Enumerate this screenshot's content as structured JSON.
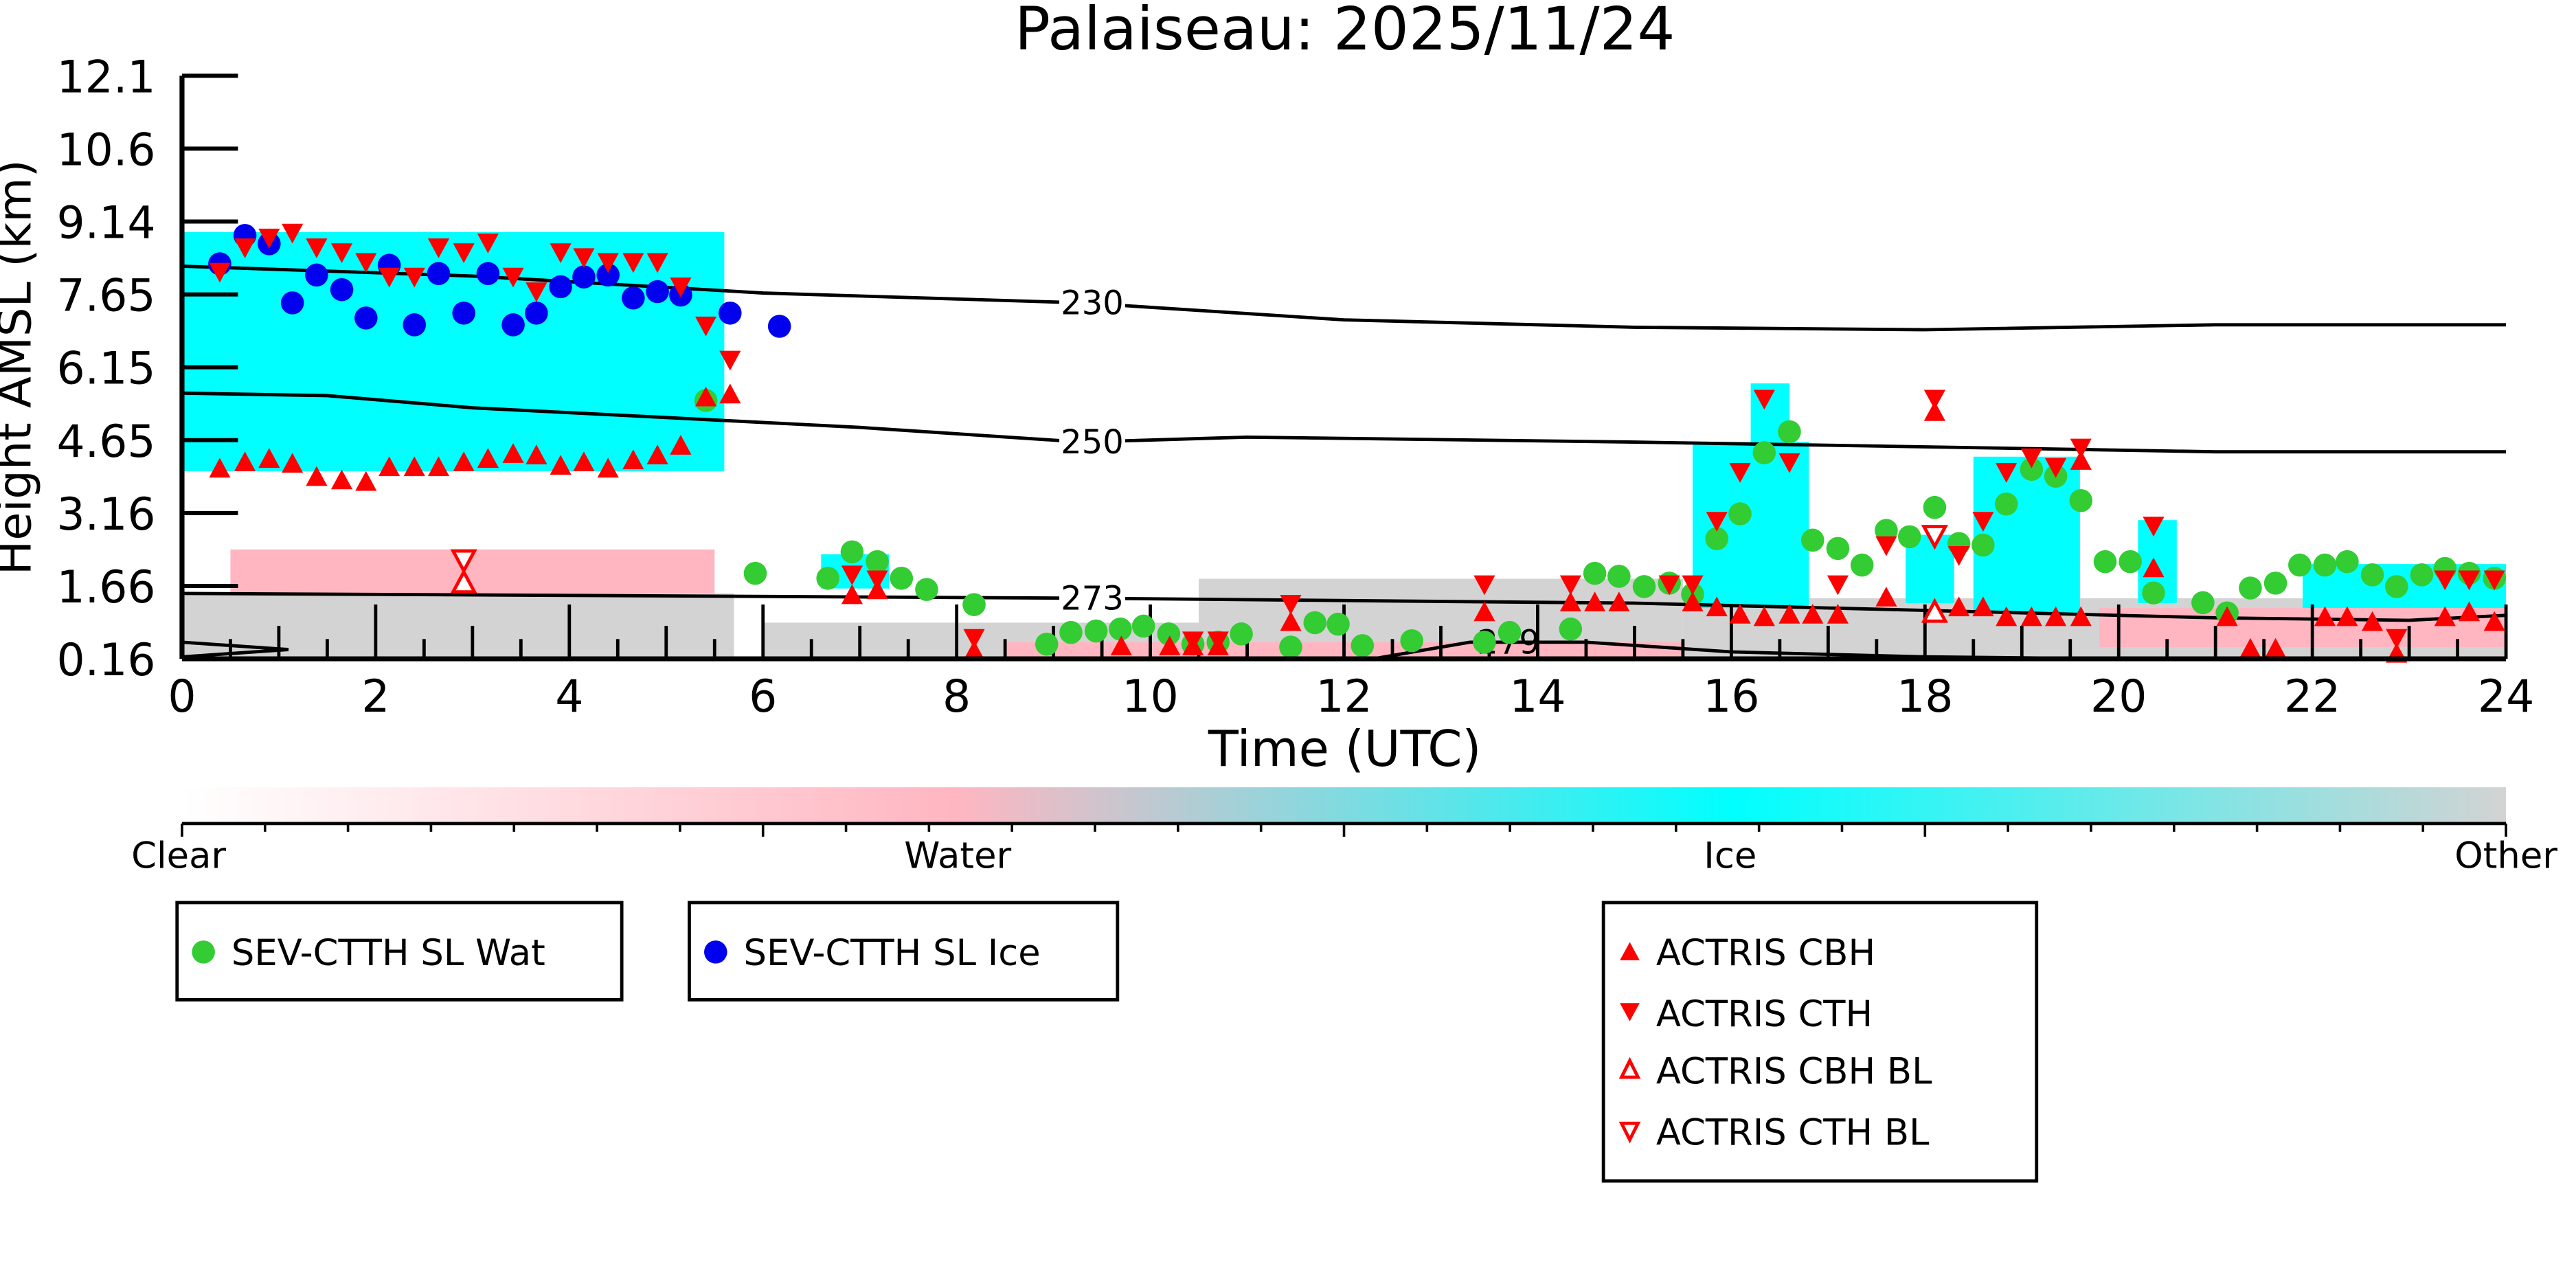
{
  "chart_data": {
    "type": "scatter",
    "title": "Palaiseau: 2025/11/24",
    "xlabel": "Time (UTC)",
    "ylabel": "Height AMSL (km)",
    "xlim": [
      0,
      24
    ],
    "ylim": [
      0.16,
      12.1
    ],
    "x_ticks": [
      "0",
      "2",
      "4",
      "6",
      "8",
      "10",
      "12",
      "14",
      "16",
      "18",
      "20",
      "22",
      "24"
    ],
    "y_ticks": [
      "0.16",
      "1.66",
      "3.16",
      "4.65",
      "6.15",
      "7.65",
      "9.14",
      "10.6",
      "12.1"
    ],
    "colorbar": {
      "labels": [
        "Clear",
        "Water",
        "Ice",
        "Other"
      ],
      "colors": [
        "#ffffff",
        "#ffb6c1",
        "#00ffff",
        "#d3d3d3"
      ]
    },
    "classification_regions": [
      {
        "class": "Other",
        "t": [
          0,
          5.7
        ],
        "h": [
          0.16,
          1.5
        ]
      },
      {
        "class": "Water",
        "t": [
          0.5,
          5.5
        ],
        "h": [
          1.5,
          2.4
        ]
      },
      {
        "class": "Ice",
        "t": [
          0,
          5.6
        ],
        "h": [
          4.0,
          8.9
        ]
      },
      {
        "class": "Ice",
        "t": [
          6.6,
          7.3
        ],
        "h": [
          1.6,
          2.3
        ]
      },
      {
        "class": "Other",
        "t": [
          6.0,
          15.5
        ],
        "h": [
          0.16,
          0.9
        ]
      },
      {
        "class": "Other",
        "t": [
          10.5,
          15.5
        ],
        "h": [
          0.9,
          1.8
        ]
      },
      {
        "class": "Water",
        "t": [
          8.5,
          15.5
        ],
        "h": [
          0.16,
          0.5
        ]
      },
      {
        "class": "Other",
        "t": [
          15.5,
          24
        ],
        "h": [
          0.16,
          1.4
        ]
      },
      {
        "class": "Ice",
        "t": [
          15.6,
          16.8
        ],
        "h": [
          1.2,
          4.6
        ]
      },
      {
        "class": "Ice",
        "t": [
          16.2,
          16.6
        ],
        "h": [
          4.6,
          5.8
        ]
      },
      {
        "class": "Ice",
        "t": [
          17.8,
          18.3
        ],
        "h": [
          1.3,
          2.7
        ]
      },
      {
        "class": "Ice",
        "t": [
          18.5,
          19.6
        ],
        "h": [
          1.1,
          4.3
        ]
      },
      {
        "class": "Ice",
        "t": [
          20.2,
          20.6
        ],
        "h": [
          1.3,
          3.0
        ]
      },
      {
        "class": "Ice",
        "t": [
          21.9,
          24
        ],
        "h": [
          1.2,
          2.1
        ]
      },
      {
        "class": "Water",
        "t": [
          19.8,
          24
        ],
        "h": [
          0.4,
          1.2
        ]
      }
    ],
    "isotherms": [
      {
        "label": "230",
        "points": [
          [
            0,
            8.2
          ],
          [
            3,
            8.0
          ],
          [
            6,
            7.65
          ],
          [
            9.3,
            7.45
          ],
          [
            12,
            7.1
          ],
          [
            15,
            6.95
          ],
          [
            18,
            6.9
          ],
          [
            21,
            7.0
          ],
          [
            24,
            7.0
          ]
        ]
      },
      {
        "label": "250",
        "points": [
          [
            0,
            5.6
          ],
          [
            1.5,
            5.55
          ],
          [
            3,
            5.3
          ],
          [
            5,
            5.1
          ],
          [
            7,
            4.9
          ],
          [
            9.3,
            4.6
          ],
          [
            11,
            4.7
          ],
          [
            15,
            4.6
          ],
          [
            18,
            4.5
          ],
          [
            21,
            4.4
          ],
          [
            24,
            4.4
          ]
        ]
      },
      {
        "label": "273",
        "points": [
          [
            0,
            1.5
          ],
          [
            5,
            1.45
          ],
          [
            9.3,
            1.4
          ],
          [
            15,
            1.3
          ],
          [
            18,
            1.15
          ],
          [
            21,
            1.0
          ],
          [
            23,
            0.95
          ],
          [
            24,
            1.05
          ]
        ]
      },
      {
        "label": "279",
        "points": [
          [
            12.3,
            0.16
          ],
          [
            13.3,
            0.5
          ],
          [
            14.5,
            0.5
          ],
          [
            16,
            0.3
          ],
          [
            18,
            0.2
          ],
          [
            20,
            0.16
          ]
        ]
      }
    ],
    "isotherm_extra": [
      [
        0,
        0.5
      ],
      [
        1.1,
        0.35
      ],
      [
        0,
        0.2
      ],
      [
        1.1,
        0.35
      ]
    ],
    "series": [
      {
        "name": "SEV-CTTH SL Wat",
        "marker": "circle",
        "color": "#33cc33",
        "points": [
          [
            5.41,
            5.45
          ],
          [
            5.92,
            1.91
          ],
          [
            6.67,
            1.81
          ],
          [
            6.92,
            2.35
          ],
          [
            7.18,
            2.15
          ],
          [
            7.43,
            1.81
          ],
          [
            7.69,
            1.58
          ],
          [
            8.18,
            1.27
          ],
          [
            8.93,
            0.46
          ],
          [
            9.18,
            0.7
          ],
          [
            9.44,
            0.73
          ],
          [
            9.69,
            0.77
          ],
          [
            9.93,
            0.83
          ],
          [
            10.19,
            0.67
          ],
          [
            10.44,
            0.46
          ],
          [
            10.7,
            0.5
          ],
          [
            10.94,
            0.67
          ],
          [
            11.45,
            0.4
          ],
          [
            11.7,
            0.9
          ],
          [
            11.94,
            0.87
          ],
          [
            12.19,
            0.43
          ],
          [
            12.7,
            0.53
          ],
          [
            13.45,
            0.5
          ],
          [
            13.71,
            0.7
          ],
          [
            14.34,
            0.77
          ],
          [
            14.59,
            1.91
          ],
          [
            14.84,
            1.85
          ],
          [
            15.1,
            1.64
          ],
          [
            15.36,
            1.71
          ],
          [
            15.6,
            1.48
          ],
          [
            15.85,
            2.62
          ],
          [
            16.09,
            3.13
          ],
          [
            16.34,
            4.38
          ],
          [
            16.6,
            4.81
          ],
          [
            16.84,
            2.59
          ],
          [
            17.1,
            2.42
          ],
          [
            17.35,
            2.08
          ],
          [
            17.6,
            2.79
          ],
          [
            17.84,
            2.66
          ],
          [
            18.1,
            3.26
          ],
          [
            18.35,
            2.52
          ],
          [
            18.6,
            2.49
          ],
          [
            18.84,
            3.33
          ],
          [
            19.1,
            4.04
          ],
          [
            19.35,
            3.9
          ],
          [
            19.61,
            3.4
          ],
          [
            19.86,
            2.15
          ],
          [
            20.12,
            2.15
          ],
          [
            20.36,
            1.51
          ],
          [
            20.87,
            1.31
          ],
          [
            21.12,
            1.1
          ],
          [
            21.36,
            1.61
          ],
          [
            21.62,
            1.71
          ],
          [
            21.87,
            2.08
          ],
          [
            22.13,
            2.08
          ],
          [
            22.36,
            2.15
          ],
          [
            22.62,
            1.88
          ],
          [
            22.87,
            1.64
          ],
          [
            23.13,
            1.88
          ],
          [
            23.37,
            2.01
          ],
          [
            23.62,
            1.91
          ],
          [
            23.88,
            1.81
          ]
        ]
      },
      {
        "name": "SEV-CTTH SL Ice",
        "marker": "circle",
        "color": "#0000ee",
        "points": [
          [
            0.39,
            8.25
          ],
          [
            0.65,
            8.83
          ],
          [
            0.9,
            8.66
          ],
          [
            1.14,
            7.45
          ],
          [
            1.39,
            8.02
          ],
          [
            1.65,
            7.72
          ],
          [
            1.9,
            7.14
          ],
          [
            2.14,
            8.22
          ],
          [
            2.4,
            7.0
          ],
          [
            2.65,
            8.05
          ],
          [
            2.91,
            7.24
          ],
          [
            3.16,
            8.05
          ],
          [
            3.42,
            7.0
          ],
          [
            3.66,
            7.24
          ],
          [
            3.91,
            7.78
          ],
          [
            4.15,
            7.98
          ],
          [
            4.4,
            8.02
          ],
          [
            4.66,
            7.55
          ],
          [
            4.91,
            7.68
          ],
          [
            5.15,
            7.61
          ],
          [
            5.66,
            7.24
          ],
          [
            6.17,
            6.97
          ]
        ]
      },
      {
        "name": "ACTRIS CBH",
        "marker": "triangle-up",
        "color": "#ff0000",
        "points": [
          [
            0.39,
            4.04
          ],
          [
            0.65,
            4.17
          ],
          [
            0.9,
            4.24
          ],
          [
            1.14,
            4.14
          ],
          [
            1.39,
            3.87
          ],
          [
            1.65,
            3.8
          ],
          [
            1.9,
            3.77
          ],
          [
            2.14,
            4.07
          ],
          [
            2.4,
            4.07
          ],
          [
            2.65,
            4.07
          ],
          [
            2.91,
            4.17
          ],
          [
            3.16,
            4.24
          ],
          [
            3.42,
            4.34
          ],
          [
            3.66,
            4.31
          ],
          [
            3.91,
            4.1
          ],
          [
            4.15,
            4.17
          ],
          [
            4.4,
            4.04
          ],
          [
            4.66,
            4.21
          ],
          [
            4.91,
            4.31
          ],
          [
            5.15,
            4.51
          ],
          [
            5.41,
            5.5
          ],
          [
            5.66,
            5.56
          ],
          [
            6.92,
            1.45
          ],
          [
            7.18,
            1.55
          ],
          [
            8.18,
            0.3
          ],
          [
            9.7,
            0.4
          ],
          [
            10.2,
            0.4
          ],
          [
            10.44,
            0.4
          ],
          [
            10.7,
            0.4
          ],
          [
            11.45,
            0.9
          ],
          [
            13.45,
            1.1
          ],
          [
            14.34,
            1.3
          ],
          [
            14.59,
            1.3
          ],
          [
            14.84,
            1.3
          ],
          [
            15.6,
            1.3
          ],
          [
            15.85,
            1.2
          ],
          [
            16.09,
            1.05
          ],
          [
            16.34,
            1.0
          ],
          [
            16.6,
            1.05
          ],
          [
            16.84,
            1.05
          ],
          [
            17.1,
            1.05
          ],
          [
            17.6,
            1.4
          ],
          [
            18.1,
            5.2
          ],
          [
            18.35,
            1.2
          ],
          [
            18.6,
            1.2
          ],
          [
            18.84,
            1.0
          ],
          [
            19.1,
            1.0
          ],
          [
            19.35,
            1.0
          ],
          [
            19.61,
            4.2
          ],
          [
            19.61,
            1.0
          ],
          [
            20.36,
            2.0
          ],
          [
            21.12,
            1.0
          ],
          [
            21.36,
            0.35
          ],
          [
            21.62,
            0.35
          ],
          [
            22.13,
            1.0
          ],
          [
            22.36,
            1.0
          ],
          [
            22.62,
            0.9
          ],
          [
            22.87,
            0.25
          ],
          [
            23.37,
            1.0
          ],
          [
            23.62,
            1.1
          ],
          [
            23.88,
            0.9
          ]
        ]
      },
      {
        "name": "ACTRIS CTH",
        "marker": "triangle-down",
        "color": "#ff0000",
        "points": [
          [
            0.39,
            8.1
          ],
          [
            0.65,
            8.6
          ],
          [
            0.9,
            8.8
          ],
          [
            1.14,
            8.9
          ],
          [
            1.39,
            8.6
          ],
          [
            1.65,
            8.5
          ],
          [
            1.9,
            8.3
          ],
          [
            2.14,
            8.0
          ],
          [
            2.4,
            8.0
          ],
          [
            2.65,
            8.6
          ],
          [
            2.91,
            8.5
          ],
          [
            3.16,
            8.7
          ],
          [
            3.42,
            8.0
          ],
          [
            3.66,
            7.7
          ],
          [
            3.91,
            8.5
          ],
          [
            4.15,
            8.4
          ],
          [
            4.4,
            8.3
          ],
          [
            4.66,
            8.3
          ],
          [
            4.91,
            8.3
          ],
          [
            5.15,
            7.8
          ],
          [
            5.41,
            7.0
          ],
          [
            5.66,
            6.3
          ],
          [
            6.92,
            1.9
          ],
          [
            7.18,
            1.8
          ],
          [
            8.18,
            0.6
          ],
          [
            10.44,
            0.55
          ],
          [
            10.7,
            0.55
          ],
          [
            11.45,
            1.3
          ],
          [
            13.45,
            1.7
          ],
          [
            14.34,
            1.7
          ],
          [
            15.36,
            1.7
          ],
          [
            15.6,
            1.7
          ],
          [
            15.85,
            3.0
          ],
          [
            16.09,
            4.0
          ],
          [
            16.34,
            5.5
          ],
          [
            16.6,
            4.2
          ],
          [
            17.1,
            1.7
          ],
          [
            17.6,
            2.5
          ],
          [
            18.1,
            5.5
          ],
          [
            18.35,
            2.3
          ],
          [
            18.6,
            3.0
          ],
          [
            18.84,
            4.0
          ],
          [
            19.1,
            4.3
          ],
          [
            19.35,
            4.1
          ],
          [
            19.61,
            4.5
          ],
          [
            20.36,
            2.9
          ],
          [
            22.87,
            0.6
          ],
          [
            23.37,
            1.8
          ],
          [
            23.62,
            1.8
          ],
          [
            23.88,
            1.8
          ]
        ]
      },
      {
        "name": "ACTRIS CBH BL",
        "marker": "triangle-up-open",
        "color": "#ff0000",
        "points": [
          [
            2.91,
            1.7
          ],
          [
            18.1,
            1.1
          ]
        ]
      },
      {
        "name": "ACTRIS CTH BL",
        "marker": "triangle-down-open",
        "color": "#ff0000",
        "points": [
          [
            2.91,
            2.2
          ],
          [
            18.1,
            2.7
          ]
        ]
      }
    ],
    "legends": [
      {
        "entries": [
          "SEV-CTTH SL Wat"
        ]
      },
      {
        "entries": [
          "SEV-CTTH SL Ice"
        ]
      },
      {
        "entries": [
          "ACTRIS CBH",
          "ACTRIS CTH",
          "ACTRIS CBH BL",
          "ACTRIS CTH BL"
        ]
      }
    ]
  }
}
